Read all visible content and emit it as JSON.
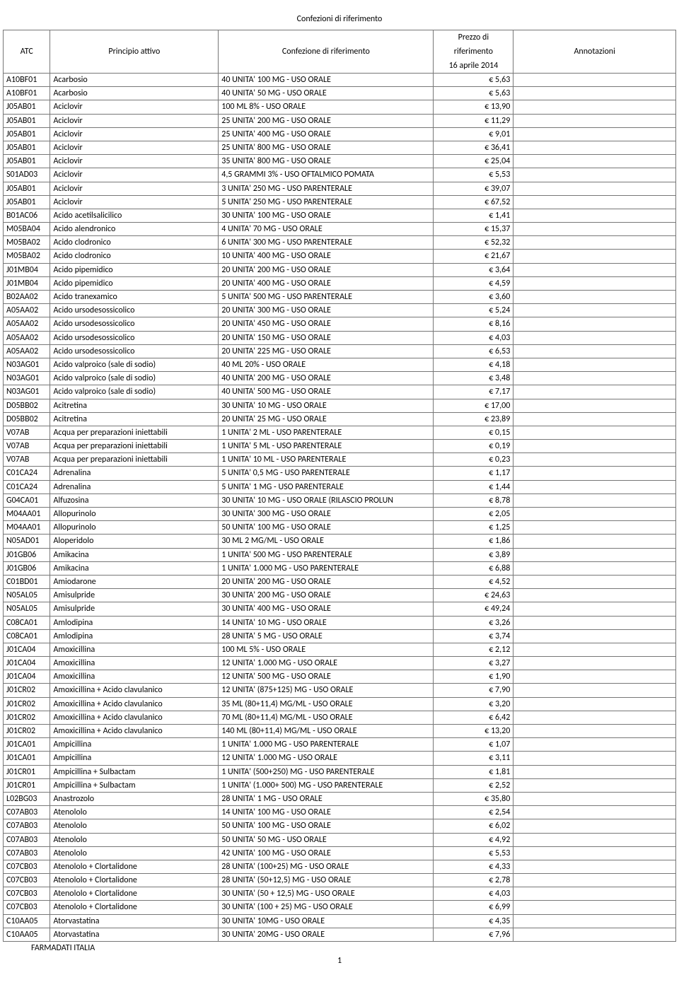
{
  "title": "Confezioni di riferimento",
  "header": {
    "atc": "ATC",
    "principio": "Principio attivo",
    "confezione": "Confezione di riferimento",
    "prezzo_l1": "Prezzo di",
    "prezzo_l2": "riferimento",
    "prezzo_l3": "16 aprile 2014",
    "annotazioni": "Annotazioni"
  },
  "footer": "FARMADATI ITALIA",
  "page_number": "1",
  "columns": [
    "atc",
    "pa",
    "conf",
    "price",
    "ann"
  ],
  "rows": [
    {
      "atc": "A10BF01",
      "pa": "Acarbosio",
      "conf": "40 UNITA' 100 MG - USO ORALE",
      "price": "€ 5,63",
      "ann": ""
    },
    {
      "atc": "A10BF01",
      "pa": "Acarbosio",
      "conf": "40 UNITA' 50 MG - USO ORALE",
      "price": "€ 5,63",
      "ann": ""
    },
    {
      "atc": "J05AB01",
      "pa": "Aciclovir",
      "conf": "100 ML 8% - USO ORALE",
      "price": "€ 13,90",
      "ann": ""
    },
    {
      "atc": "J05AB01",
      "pa": "Aciclovir",
      "conf": "25 UNITA' 200 MG - USO ORALE",
      "price": "€ 11,29",
      "ann": ""
    },
    {
      "atc": "J05AB01",
      "pa": "Aciclovir",
      "conf": "25 UNITA' 400 MG - USO ORALE",
      "price": "€ 9,01",
      "ann": ""
    },
    {
      "atc": "J05AB01",
      "pa": "Aciclovir",
      "conf": "25 UNITA' 800 MG - USO ORALE",
      "price": "€ 36,41",
      "ann": ""
    },
    {
      "atc": "J05AB01",
      "pa": "Aciclovir",
      "conf": "35 UNITA' 800 MG - USO ORALE",
      "price": "€ 25,04",
      "ann": ""
    },
    {
      "atc": "S01AD03",
      "pa": "Aciclovir",
      "conf": "4,5 GRAMMI 3% - USO OFTALMICO POMATA",
      "price": "€ 5,53",
      "ann": ""
    },
    {
      "atc": "J05AB01",
      "pa": "Aciclovir",
      "conf": "3 UNITA' 250 MG - USO PARENTERALE",
      "price": "€ 39,07",
      "ann": ""
    },
    {
      "atc": "J05AB01",
      "pa": "Aciclovir",
      "conf": "5 UNITA' 250 MG - USO PARENTERALE",
      "price": "€ 67,52",
      "ann": ""
    },
    {
      "atc": "B01AC06",
      "pa": "Acido acetilsalicilico",
      "conf": "30 UNITA' 100 MG - USO ORALE",
      "price": "€ 1,41",
      "ann": ""
    },
    {
      "atc": "M05BA04",
      "pa": "Acido alendronico",
      "conf": "4 UNITA' 70 MG - USO ORALE",
      "price": "€ 15,37",
      "ann": ""
    },
    {
      "atc": "M05BA02",
      "pa": "Acido clodronico",
      "conf": "6 UNITA' 300 MG - USO PARENTERALE",
      "price": "€ 52,32",
      "ann": ""
    },
    {
      "atc": "M05BA02",
      "pa": "Acido clodronico",
      "conf": "10 UNITA' 400 MG - USO ORALE",
      "price": "€ 21,67",
      "ann": ""
    },
    {
      "atc": "J01MB04",
      "pa": "Acido pipemidico",
      "conf": "20 UNITA'  200 MG - USO ORALE",
      "price": "€ 3,64",
      "ann": ""
    },
    {
      "atc": "J01MB04",
      "pa": "Acido pipemidico",
      "conf": "20 UNITA'  400 MG - USO ORALE",
      "price": "€ 4,59",
      "ann": ""
    },
    {
      "atc": "B02AA02",
      "pa": "Acido tranexamico",
      "conf": "5 UNITA' 500 MG - USO PARENTERALE",
      "price": "€ 3,60",
      "ann": ""
    },
    {
      "atc": "A05AA02",
      "pa": "Acido ursodesossicolico",
      "conf": "20 UNITA' 300 MG - USO ORALE",
      "price": "€ 5,24",
      "ann": ""
    },
    {
      "atc": "A05AA02",
      "pa": "Acido ursodesossicolico",
      "conf": "20 UNITA' 450 MG - USO ORALE",
      "price": "€ 8,16",
      "ann": ""
    },
    {
      "atc": "A05AA02",
      "pa": "Acido ursodesossicolico",
      "conf": "20 UNITA' 150 MG - USO ORALE",
      "price": "€ 4,03",
      "ann": ""
    },
    {
      "atc": "A05AA02",
      "pa": "Acido ursodesossicolico",
      "conf": "20 UNITA' 225 MG - USO ORALE",
      "price": "€ 6,53",
      "ann": ""
    },
    {
      "atc": "N03AG01",
      "pa": "Acido valproico (sale di sodio)",
      "conf": "40 ML 20% - USO ORALE",
      "price": "€ 4,18",
      "ann": ""
    },
    {
      "atc": "N03AG01",
      "pa": "Acido valproico (sale di sodio)",
      "conf": "40 UNITA' 200 MG - USO ORALE",
      "price": "€ 3,48",
      "ann": ""
    },
    {
      "atc": "N03AG01",
      "pa": "Acido valproico (sale di sodio)",
      "conf": "40 UNITA' 500 MG - USO ORALE",
      "price": "€ 7,17",
      "ann": ""
    },
    {
      "atc": "D05BB02",
      "pa": "Acitretina",
      "conf": "30 UNITA' 10 MG - USO ORALE",
      "price": "€ 17,00",
      "ann": ""
    },
    {
      "atc": "D05BB02",
      "pa": "Acitretina",
      "conf": "20 UNITA' 25 MG - USO ORALE",
      "price": "€ 23,89",
      "ann": ""
    },
    {
      "atc": "V07AB",
      "pa": "Acqua per preparazioni iniettabili",
      "conf": "1 UNITA' 2 ML - USO PARENTERALE",
      "price": "€ 0,15",
      "ann": ""
    },
    {
      "atc": "V07AB",
      "pa": "Acqua per preparazioni iniettabili",
      "conf": "1 UNITA' 5 ML - USO PARENTERALE",
      "price": "€ 0,19",
      "ann": ""
    },
    {
      "atc": "V07AB",
      "pa": "Acqua per preparazioni iniettabili",
      "conf": "1 UNITA' 10 ML - USO PARENTERALE",
      "price": "€ 0,23",
      "ann": ""
    },
    {
      "atc": "C01CA24",
      "pa": "Adrenalina",
      "conf": "5 UNITA' 0,5 MG - USO PARENTERALE",
      "price": "€ 1,17",
      "ann": ""
    },
    {
      "atc": "C01CA24",
      "pa": "Adrenalina",
      "conf": "5 UNITA' 1 MG - USO PARENTERALE",
      "price": "€ 1,44",
      "ann": ""
    },
    {
      "atc": "G04CA01",
      "pa": "Alfuzosina",
      "conf": "30 UNITA' 10 MG - USO ORALE (RILASCIO PROLUN",
      "price": "€ 8,78",
      "ann": ""
    },
    {
      "atc": "M04AA01",
      "pa": "Allopurinolo",
      "conf": "30 UNITA' 300 MG - USO ORALE",
      "price": "€ 2,05",
      "ann": ""
    },
    {
      "atc": "M04AA01",
      "pa": "Allopurinolo",
      "conf": "50 UNITA' 100 MG - USO ORALE",
      "price": "€ 1,25",
      "ann": ""
    },
    {
      "atc": "N05AD01",
      "pa": "Aloperidolo",
      "conf": "30 ML 2 MG/ML - USO ORALE",
      "price": "€ 1,86",
      "ann": ""
    },
    {
      "atc": "J01GB06",
      "pa": "Amikacina",
      "conf": "1 UNITA' 500 MG - USO PARENTERALE",
      "price": "€ 3,89",
      "ann": ""
    },
    {
      "atc": "J01GB06",
      "pa": "Amikacina",
      "conf": "1 UNITA' 1.000 MG - USO PARENTERALE",
      "price": "€ 6,88",
      "ann": ""
    },
    {
      "atc": "C01BD01",
      "pa": "Amiodarone",
      "conf": "20 UNITA' 200 MG - USO ORALE",
      "price": "€ 4,52",
      "ann": ""
    },
    {
      "atc": "N05AL05",
      "pa": "Amisulpride",
      "conf": "30 UNITA' 200 MG - USO ORALE",
      "price": "€ 24,63",
      "ann": ""
    },
    {
      "atc": "N05AL05",
      "pa": "Amisulpride",
      "conf": "30 UNITA' 400 MG - USO ORALE",
      "price": "€ 49,24",
      "ann": ""
    },
    {
      "atc": "C08CA01",
      "pa": "Amlodipina",
      "conf": "14 UNITA' 10 MG - USO ORALE",
      "price": "€ 3,26",
      "ann": ""
    },
    {
      "atc": "C08CA01",
      "pa": "Amlodipina",
      "conf": "28 UNITA' 5 MG - USO ORALE",
      "price": "€ 3,74",
      "ann": ""
    },
    {
      "atc": "J01CA04",
      "pa": "Amoxicillina",
      "conf": "100 ML 5% - USO ORALE",
      "price": "€ 2,12",
      "ann": ""
    },
    {
      "atc": "J01CA04",
      "pa": "Amoxicillina",
      "conf": "12 UNITA' 1.000 MG - USO ORALE",
      "price": "€ 3,27",
      "ann": ""
    },
    {
      "atc": "J01CA04",
      "pa": "Amoxicillina",
      "conf": "12 UNITA' 500 MG - USO ORALE",
      "price": "€ 1,90",
      "ann": ""
    },
    {
      "atc": "J01CR02",
      "pa": "Amoxicillina + Acido clavulanico",
      "conf": "12 UNITA' (875+125) MG - USO ORALE",
      "price": "€ 7,90",
      "ann": ""
    },
    {
      "atc": "J01CR02",
      "pa": "Amoxicillina + Acido clavulanico",
      "conf": "35 ML (80+11,4) MG/ML - USO ORALE",
      "price": "€ 3,20",
      "ann": ""
    },
    {
      "atc": "J01CR02",
      "pa": "Amoxicillina + Acido clavulanico",
      "conf": "70 ML (80+11,4) MG/ML - USO ORALE",
      "price": "€ 6,42",
      "ann": ""
    },
    {
      "atc": "J01CR02",
      "pa": "Amoxicillina + Acido clavulanico",
      "conf": "140 ML (80+11,4) MG/ML - USO ORALE",
      "price": "€ 13,20",
      "ann": ""
    },
    {
      "atc": "J01CA01",
      "pa": "Ampicillina",
      "conf": "1 UNITA' 1.000 MG - USO PARENTERALE",
      "price": "€ 1,07",
      "ann": ""
    },
    {
      "atc": "J01CA01",
      "pa": "Ampicillina",
      "conf": "12 UNITA' 1.000 MG - USO ORALE",
      "price": "€ 3,11",
      "ann": ""
    },
    {
      "atc": "J01CR01",
      "pa": "Ampicillina + Sulbactam",
      "conf": "1 UNITA' (500+250) MG - USO PARENTERALE",
      "price": "€ 1,81",
      "ann": ""
    },
    {
      "atc": "J01CR01",
      "pa": "Ampicillina + Sulbactam",
      "conf": "1 UNITA' (1.000+ 500) MG - USO PARENTERALE",
      "price": "€ 2,52",
      "ann": ""
    },
    {
      "atc": "L02BG03",
      "pa": "Anastrozolo",
      "conf": "28 UNITA' 1 MG - USO ORALE",
      "price": "€ 35,80",
      "ann": ""
    },
    {
      "atc": "C07AB03",
      "pa": "Atenololo",
      "conf": "14 UNITA' 100 MG - USO ORALE",
      "price": "€ 2,54",
      "ann": ""
    },
    {
      "atc": "C07AB03",
      "pa": "Atenololo",
      "conf": "50 UNITA' 100 MG - USO ORALE",
      "price": "€ 6,02",
      "ann": ""
    },
    {
      "atc": "C07AB03",
      "pa": "Atenololo",
      "conf": "50 UNITA' 50 MG - USO ORALE",
      "price": "€ 4,92",
      "ann": ""
    },
    {
      "atc": "C07AB03",
      "pa": "Atenololo",
      "conf": "42 UNITA' 100 MG - USO ORALE",
      "price": "€ 5,53",
      "ann": ""
    },
    {
      "atc": "C07CB03",
      "pa": "Atenololo + Clortalidone",
      "conf": "28 UNITA' (100+25) MG - USO ORALE",
      "price": "€ 4,33",
      "ann": ""
    },
    {
      "atc": "C07CB03",
      "pa": "Atenololo + Clortalidone",
      "conf": "28 UNITA' (50+12,5) MG - USO ORALE",
      "price": "€ 2,78",
      "ann": ""
    },
    {
      "atc": "C07CB03",
      "pa": "Atenololo + Clortalidone",
      "conf": "30 UNITA' (50 + 12,5) MG - USO ORALE",
      "price": "€ 4,03",
      "ann": ""
    },
    {
      "atc": "C07CB03",
      "pa": "Atenololo + Clortalidone",
      "conf": "30 UNITA' (100 + 25) MG - USO ORALE",
      "price": "€ 6,99",
      "ann": ""
    },
    {
      "atc": "C10AA05",
      "pa": "Atorvastatina",
      "conf": "30 UNITA' 10MG - USO ORALE",
      "price": "€ 4,35",
      "ann": ""
    },
    {
      "atc": "C10AA05",
      "pa": "Atorvastatina",
      "conf": "30 UNITA' 20MG - USO ORALE",
      "price": "€ 7,96",
      "ann": ""
    }
  ]
}
